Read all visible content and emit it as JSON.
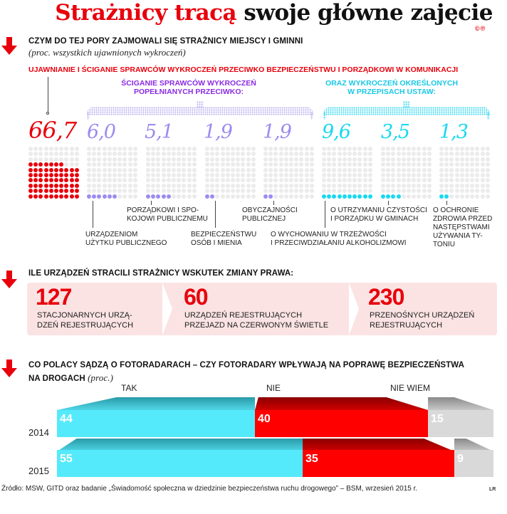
{
  "title": {
    "part1": "Strażnicy tracą",
    "part2": "swoje główne zajęcie",
    "copyright": "©℗"
  },
  "section1": {
    "title": "Czym do tej pory zajmowali się strażnicy miejscy i gminni",
    "subtitle": "(proc. wszystkich ujawnionych wykroczeń)",
    "red_heading": "Ujawnianie i ściganie sprawców wykroczeń przeciwko bezpieczeństwu i porządkowi w komunikacji",
    "purple_heading": "Ściganie sprawców wykroczeń popełnianych przeciwko:",
    "cyan_heading": "oraz wykroczeń określonych w przepisach ustaw:",
    "colors": {
      "red": "#e8000b",
      "purple": "#9b8cf0",
      "cyan": "#19d8f0",
      "empty": "#ebebeb"
    },
    "items": [
      {
        "value": "66,7",
        "dots": 67,
        "group": "red",
        "label": ""
      },
      {
        "value": "6,0",
        "dots": 6,
        "group": "purple",
        "label": "Urządzeniom użytku publicznego"
      },
      {
        "value": "5,1",
        "dots": 5,
        "group": "purple",
        "label": "Porządkowi i spokojowi publicznemu"
      },
      {
        "value": "1,9",
        "dots": 2,
        "group": "purple",
        "label": "Bezpieczeństwu osób i mienia"
      },
      {
        "value": "1,9",
        "dots": 2,
        "group": "purple",
        "label": "Obyczajności publicznej"
      },
      {
        "value": "9,6",
        "dots": 10,
        "group": "cyan",
        "label": "O wychowaniu w trzeźwości i przeciwdziałaniu alkoholizmowi"
      },
      {
        "value": "3,5",
        "dots": 4,
        "group": "cyan",
        "label": "O utrzymaniu czystości i porządku w gminach"
      },
      {
        "value": "1,3",
        "dots": 2,
        "group": "cyan",
        "label": "O ochronie zdrowia przed następstwami używania tytoniu"
      }
    ],
    "labels": {
      "l1a": "URZĄDZENIOM",
      "l1b": "UŻYTKU PUBLICZNEGO",
      "l2a": "PORZĄDKOWI I SPO-",
      "l2b": "KOJOWI PUBLICZNEMU",
      "l3a": "BEZPIECZEŃSTWU",
      "l3b": "OSÓB I MIENIA",
      "l4a": "OBYCZAJNOŚCI",
      "l4b": "PUBLICZNEJ",
      "l5a": "O WYCHOWANIU W TRZEŹWOŚCI",
      "l5b": "I PRZECIWDZIAŁANIU ALKOHOLIZMOWI",
      "l6a": "O UTRZYMANIU CZYSTOŚCI",
      "l6b": "I PORZĄDKU W GMINACH",
      "l7a": "O OCHRONIE",
      "l7b": "ZDROWIA PRZED",
      "l7c": "NASTĘPSTWAMI",
      "l7d": "UŻYWANIA TY-",
      "l7e": "TONIU"
    },
    "head_lines": {
      "purple1": "ŚCIGANIE SPRAWCÓW WYKROCZEŃ",
      "purple2": "POPEŁNIANYCH PRZECIWKO:",
      "cyan1": "ORAZ WYKROCZEŃ OKREŚLONYCH",
      "cyan2": "W PRZEPISACH USTAW:"
    }
  },
  "section2": {
    "title": "Ile urządzeń stracili strażnicy wskutek zmiany prawa:",
    "stats": [
      {
        "value": "127",
        "line1": "STACJONARNYCH URZĄ-",
        "line2": "DZEŃ REJESTRUJĄCYCH"
      },
      {
        "value": "60",
        "line1": "URZĄDZEŃ REJESTRUJĄCYCH",
        "line2": "PRZEJAZD NA CZERWONYM ŚWIETLE"
      },
      {
        "value": "230",
        "line1": "PRZENOŚNYCH URZĄDZEŃ",
        "line2": "REJESTRUJĄCYCH"
      }
    ]
  },
  "section3": {
    "title": "Co Polacy sądzą o fotoradarach – czy fotoradary wpływają na poprawę bezpieczeństwa",
    "title2": "na drogach",
    "unit": "(proc.)"
  },
  "chart_data": [
    {
      "type": "table",
      "title": "Czym do tej pory zajmowali się strażnicy miejscy i gminni",
      "subtitle": "(proc. wszystkich ujawnionych wykroczeń)",
      "categories": [
        "Ujawnianie i ściganie sprawców wykroczeń przeciwko bezpieczeństwu i porządkowi w komunikacji",
        "Urządzeniom użytku publicznego",
        "Porządkowi i spokojowi publicznemu",
        "Bezpieczeństwu osób i mienia",
        "Obyczajności publicznej",
        "O wychowaniu w trzeźwości i przeciwdziałaniu alkoholizmowi",
        "O utrzymaniu czystości i porządku w gminach",
        "O ochronie zdrowia przed następstwami używania tytoniu"
      ],
      "values": [
        66.7,
        6.0,
        5.1,
        1.9,
        1.9,
        9.6,
        3.5,
        1.3
      ],
      "unit": "%"
    },
    {
      "type": "bar",
      "stacked": true,
      "orientation": "horizontal",
      "title": "Co Polacy sądzą o fotoradarach – czy fotoradary wpływają na poprawę bezpieczeństwa na drogach (proc.)",
      "categories": [
        "2014",
        "2015"
      ],
      "series": [
        {
          "name": "TAK",
          "color": "#55eafb",
          "values": [
            44,
            55
          ]
        },
        {
          "name": "NIE",
          "color": "#ff0000",
          "values": [
            40,
            35
          ]
        },
        {
          "name": "NIE WIEM",
          "color": "#d9d9d9",
          "values": [
            15,
            9
          ]
        }
      ],
      "xlim": [
        0,
        100
      ]
    }
  ],
  "bars": {
    "headers": {
      "tak": "TAK",
      "nie": "NIE",
      "niewiem": "NIE WIEM"
    },
    "y2014": {
      "year": "2014",
      "tak": "44",
      "nie": "40",
      "niewiem": "15"
    },
    "y2015": {
      "year": "2015",
      "tak": "55",
      "nie": "35",
      "niewiem": "9"
    }
  },
  "footer": {
    "source": "Źródło: MSW, GITD oraz badanie „Świadomość społeczna w dziedzinie bezpieczeństwa ruchu drogowego” – BSM, wrzesień 2015 r.",
    "credit": "LR"
  }
}
